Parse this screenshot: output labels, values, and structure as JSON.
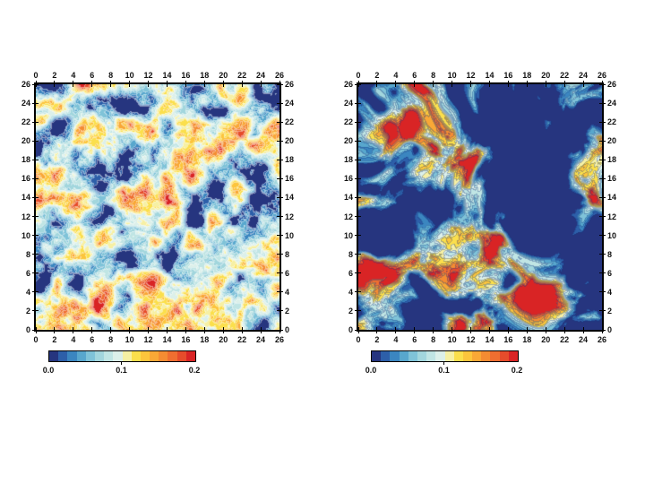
{
  "figure": {
    "background": "#ffffff",
    "description": "Two GMT-style filled contour maps of a turbulent scalar field on a 26x26 domain, each with its own horizontal colorbar from 0.0 to 0.2"
  },
  "chart_data": {
    "type": "heatmap",
    "layout": "two side-by-side square contour panels, axis ticks every 2 units on all four sides, discrete 16-step blue-to-red colormap, colorbar under each panel",
    "colormap": {
      "min": 0.0,
      "max": 0.2,
      "colors": [
        "#26357f",
        "#2d5fa9",
        "#3b86c0",
        "#58a7cd",
        "#7fc3d8",
        "#a2d6dd",
        "#c0e5e4",
        "#dcf0ea",
        "#f6f0a4",
        "#fbdf4c",
        "#fcc53c",
        "#f9a836",
        "#f48c32",
        "#ef6e30",
        "#e64c2b",
        "#d92425"
      ]
    },
    "panels": [
      {
        "id": "panel-left",
        "name": "left contour field (low contrast)",
        "xlim": [
          0,
          26
        ],
        "ylim": [
          0,
          26
        ],
        "x_tick_labels": [
          "0",
          "2",
          "4",
          "6",
          "8",
          "10",
          "12",
          "14",
          "16",
          "18",
          "20",
          "22",
          "24",
          "26"
        ],
        "y_tick_labels": [
          "26",
          "24",
          "22",
          "20",
          "18",
          "16",
          "14",
          "12",
          "10",
          "8",
          "6",
          "4",
          "2",
          "0"
        ],
        "description": "pale cyan background with thin light contour lines, scattered blue minima and small yellow-orange maxima streaks",
        "field": {
          "seed": 7,
          "freq": 11,
          "warp": 0.55,
          "warp_freq": 0.5,
          "octaves": 5,
          "bias": 0.37,
          "contrast": 2.0,
          "line_color": "#ffffff",
          "line_alpha": 0.45
        },
        "colorbar": {
          "min": 0.0,
          "max": 0.2,
          "tick_labels": [
            "0.0",
            "0.1",
            "0.2"
          ]
        }
      },
      {
        "id": "panel-right",
        "name": "right contour field (high contrast)",
        "xlim": [
          0,
          26
        ],
        "ylim": [
          0,
          26
        ],
        "x_tick_labels": [
          "0",
          "2",
          "4",
          "6",
          "8",
          "10",
          "12",
          "14",
          "16",
          "18",
          "20",
          "22",
          "24",
          "26"
        ],
        "y_tick_labels": [
          "26",
          "24",
          "22",
          "20",
          "18",
          "16",
          "14",
          "12",
          "10",
          "8",
          "6",
          "4",
          "2",
          "0"
        ],
        "description": "strongly stirred field: swirling dark-blue filaments, pale cyan ridges and intense yellow-orange-red maxima including large red patches",
        "field": {
          "seed": 1337,
          "freq": 6.5,
          "warp": 2.3,
          "warp_freq": 0.45,
          "octaves": 5,
          "bias": 0.28,
          "contrast": 3.3,
          "line_color": "#16357d",
          "line_alpha": 0.35
        },
        "colorbar": {
          "min": 0.0,
          "max": 0.2,
          "tick_labels": [
            "0.0",
            "0.1",
            "0.2"
          ]
        }
      }
    ]
  }
}
